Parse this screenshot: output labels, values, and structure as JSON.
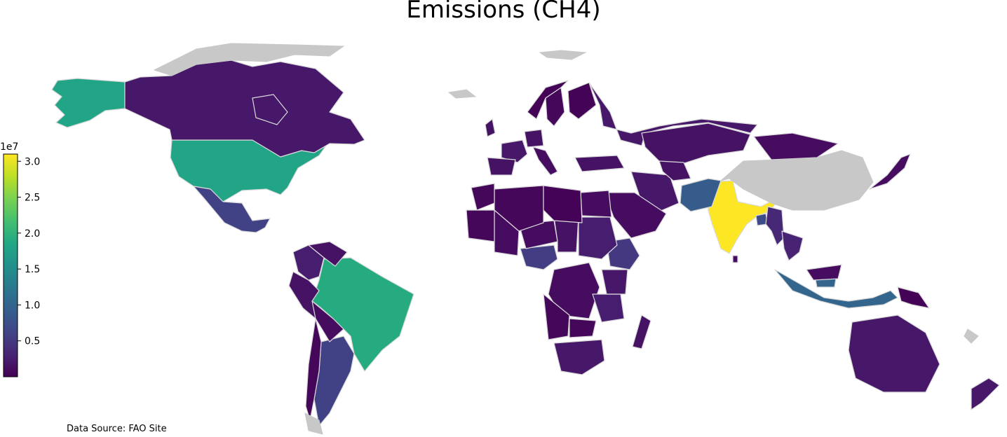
{
  "title": "Emissions (CH4)",
  "source_note": "Data Source: FAO Site",
  "colorbar": {
    "colormap": "viridis",
    "offset_label": "1e7",
    "range": [
      0,
      31000000
    ],
    "ticks": [
      "0.5",
      "1.0",
      "1.5",
      "2.0",
      "2.5",
      "3.0"
    ],
    "tick_values": [
      0.5,
      1.0,
      1.5,
      2.0,
      2.5,
      3.0
    ]
  },
  "chart_data": {
    "type": "choropleth",
    "title": "Emissions (CH4)",
    "unit_multiplier": "1e7",
    "values_1e7": {
      "India": 3.1,
      "Brazil": 1.9,
      "United States": 1.8,
      "Alaska (United States)": 1.8,
      "Indonesia": 1.0,
      "Pakistan": 0.9,
      "Argentina": 0.6,
      "Mexico": 0.6,
      "Nigeria": 0.55,
      "Ethiopia": 0.5,
      "Bangladesh": 0.7,
      "Myanmar": 0.35,
      "Thailand": 0.3,
      "Canada": 0.2,
      "Russia": 0.2,
      "Australia": 0.2,
      "Kazakhstan": 0.15,
      "Mongolia": 0.1,
      "New Zealand": 0.2,
      "Colombia": 0.25,
      "Venezuela": 0.15,
      "Peru": 0.15,
      "Bolivia": 0.1,
      "Chile": 0.05,
      "France": 0.2,
      "Germany": 0.15,
      "Spain": 0.15,
      "Italy": 0.1,
      "United Kingdom": 0.15,
      "Iran": 0.2,
      "Saudi Arabia": 0.1,
      "Sudan": 0.25,
      "Chad": 0.15,
      "Niger": 0.1,
      "Mali": 0.1,
      "Egypt": 0.1,
      "Algeria": 0.05,
      "Libya": 0.02,
      "Mauritania": 0.05,
      "Morocco": 0.05,
      "DR Congo": 0.1,
      "Tanzania": 0.25,
      "Kenya": 0.2,
      "Madagascar": 0.15,
      "South Africa": 0.2,
      "Angola": 0.05,
      "Zambia": 0.05,
      "Papua New Guinea": 0.02,
      "Malaysia": 0.1,
      "Japan": 0.1,
      "Sri Lanka": 0.1,
      "Uzbekistan": 0.15,
      "Turkey": 0.15,
      "Sweden": 0.05,
      "Finland": 0.02,
      "Norway": 0.02,
      "Greenland": null,
      "China": null
    }
  }
}
